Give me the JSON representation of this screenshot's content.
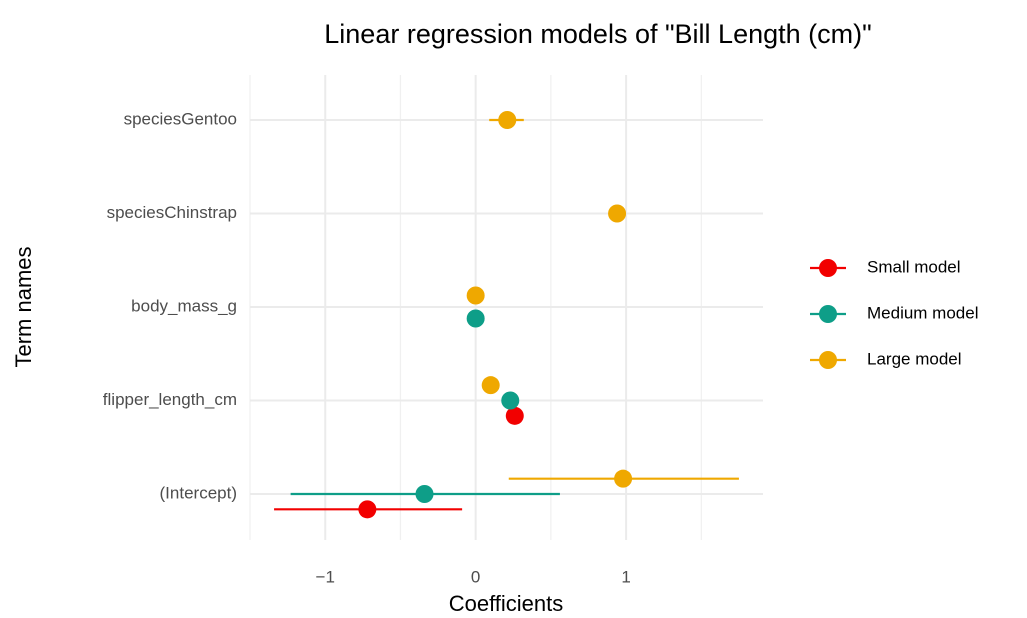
{
  "chart_data": {
    "type": "dotwhisker",
    "title": "Linear regression models of \"Bill Length (cm)\"",
    "x_label": "Coefficients",
    "y_label": "Term names",
    "categories": [
      "(Intercept)",
      "flipper_length_cm",
      "body_mass_g",
      "speciesChinstrap",
      "speciesGentoo"
    ],
    "series": [
      {
        "name": "Small model",
        "color": "#F20000",
        "values": [
          -0.72,
          0.26,
          null,
          null,
          null
        ],
        "lower": [
          -1.34,
          null,
          null,
          null,
          null
        ],
        "upper": [
          -0.09,
          null,
          null,
          null,
          null
        ]
      },
      {
        "name": "Medium model",
        "color": "#0E9E88",
        "values": [
          -0.34,
          0.23,
          0.0,
          null,
          null
        ],
        "lower": [
          -1.23,
          null,
          null,
          null,
          null
        ],
        "upper": [
          0.56,
          null,
          null,
          null,
          null
        ]
      },
      {
        "name": "Large model",
        "color": "#EFA800",
        "values": [
          0.98,
          0.1,
          0.0,
          0.94,
          0.21
        ],
        "lower": [
          0.22,
          null,
          null,
          null,
          0.09
        ],
        "upper": [
          1.75,
          null,
          null,
          null,
          0.32
        ]
      }
    ],
    "xlim": [
      -1.5,
      1.91
    ],
    "xticks": [
      {
        "value": -1,
        "label": "−1"
      },
      0,
      1
    ],
    "minor_xticks": [
      -1.5,
      -0.5,
      0.5,
      1.5
    ],
    "grid": true,
    "legend": "right"
  }
}
